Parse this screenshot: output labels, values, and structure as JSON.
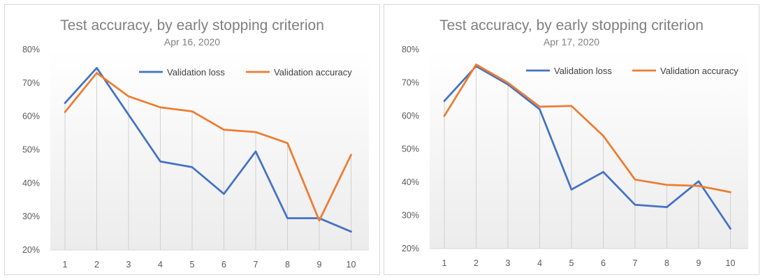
{
  "chart_data": [
    {
      "type": "line",
      "title": "Test accuracy, by early stopping criterion",
      "subtitle": "Apr 16, 2020",
      "x": [
        1,
        2,
        3,
        4,
        5,
        6,
        7,
        8,
        9,
        10
      ],
      "ylim": [
        20,
        80
      ],
      "yticks": [
        "20%",
        "30%",
        "40%",
        "50%",
        "60%",
        "70%",
        "80%"
      ],
      "ytick_values": [
        20,
        30,
        40,
        50,
        60,
        70,
        80
      ],
      "grid": "vertical drop lines",
      "legend": "top-right",
      "series": [
        {
          "name": "Validation loss",
          "color": "#4472c4",
          "values": [
            64,
            74.5,
            60.5,
            46.5,
            44.8,
            36.8,
            49.5,
            29.5,
            29.5,
            25.5
          ]
        },
        {
          "name": "Validation accuracy",
          "color": "#ed7d31",
          "values": [
            61.3,
            73,
            66,
            62.7,
            61.5,
            56,
            55.3,
            52,
            28.8,
            48.5
          ]
        }
      ]
    },
    {
      "type": "line",
      "title": "Test accuracy, by early stopping criterion",
      "subtitle": "Apr 17, 2020",
      "x": [
        1,
        2,
        3,
        4,
        5,
        6,
        7,
        8,
        9,
        10
      ],
      "ylim": [
        20,
        80
      ],
      "yticks": [
        "20%",
        "30%",
        "40%",
        "50%",
        "60%",
        "70%",
        "80%"
      ],
      "ytick_values": [
        20,
        30,
        40,
        50,
        60,
        70,
        80
      ],
      "grid": "vertical drop lines",
      "legend": "top-right",
      "series": [
        {
          "name": "Validation loss",
          "color": "#4472c4",
          "values": [
            64.5,
            75,
            69.5,
            62,
            37.8,
            43.1,
            33.2,
            32.5,
            40.3,
            26
          ]
        },
        {
          "name": "Validation accuracy",
          "color": "#ed7d31",
          "values": [
            60,
            75.5,
            70,
            62.8,
            63,
            54,
            40.8,
            39.2,
            38.9,
            37
          ]
        }
      ]
    }
  ]
}
